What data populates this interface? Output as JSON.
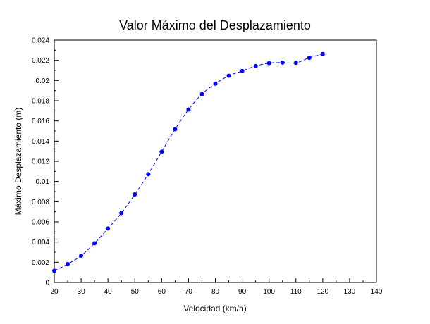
{
  "chart_data": {
    "type": "line",
    "title": "Valor Máximo del Desplazamiento",
    "xlabel": "Velocidad (km/h)",
    "ylabel": "Máximo Desplazamiento (m)",
    "xlim": [
      20,
      140
    ],
    "ylim": [
      0,
      0.024
    ],
    "xticks": [
      20,
      30,
      40,
      50,
      60,
      70,
      80,
      90,
      100,
      110,
      120,
      130,
      140
    ],
    "xtick_labels": [
      "20",
      "30",
      "40",
      "50",
      "60",
      "70",
      "80",
      "90",
      "100",
      "110",
      "120",
      "130",
      "140"
    ],
    "yticks": [
      0,
      0.002,
      0.004,
      0.006,
      0.008,
      0.01,
      0.012,
      0.014,
      0.016,
      0.018,
      0.02,
      0.022,
      0.024
    ],
    "ytick_labels": [
      "0",
      "0.002",
      "0.004",
      "0.006",
      "0.008",
      "0.01",
      "0.012",
      "0.014",
      "0.016",
      "0.018",
      "0.02",
      "0.022",
      "0.024"
    ],
    "grid": false,
    "line_style": "dashed",
    "color": "#0000ff",
    "marker": "circle",
    "x": [
      20,
      25,
      30,
      35,
      40,
      45,
      50,
      55,
      60,
      65,
      70,
      75,
      80,
      85,
      90,
      95,
      100,
      105,
      110,
      115,
      120
    ],
    "y": [
      0.00115,
      0.00182,
      0.00265,
      0.00388,
      0.00535,
      0.00688,
      0.00872,
      0.01073,
      0.01295,
      0.01518,
      0.01713,
      0.01865,
      0.01968,
      0.02047,
      0.02095,
      0.02143,
      0.02172,
      0.02178,
      0.02175,
      0.02225,
      0.02262
    ]
  }
}
